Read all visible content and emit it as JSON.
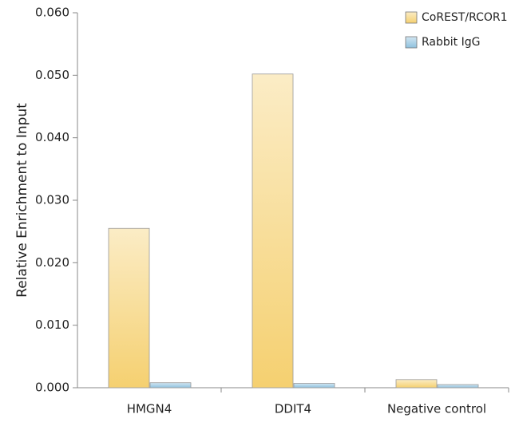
{
  "chart_data": {
    "type": "bar",
    "y_label": "Relative Enrichment to Input",
    "categories": [
      "HMGN4",
      "DDIT4",
      "Negative control"
    ],
    "series": [
      {
        "name": "CoREST/RCOR1",
        "color": "#f5d070",
        "values": [
          0.0255,
          0.0502,
          0.0013
        ]
      },
      {
        "name": "Rabbit IgG",
        "color": "#8fc1de",
        "values": [
          0.0008,
          0.0007,
          0.0005
        ]
      }
    ],
    "ylim": [
      0,
      0.06
    ],
    "yticks": [
      {
        "value": 0,
        "label": "0.000"
      },
      {
        "value": 0.01,
        "label": "0.010"
      },
      {
        "value": 0.02,
        "label": "0.020"
      },
      {
        "value": 0.03,
        "label": "0.030"
      },
      {
        "value": 0.04,
        "label": "0.040"
      },
      {
        "value": 0.05,
        "label": "0.050"
      },
      {
        "value": 0.06,
        "label": "0.060"
      }
    ],
    "legend": "upper right",
    "grid": false
  }
}
